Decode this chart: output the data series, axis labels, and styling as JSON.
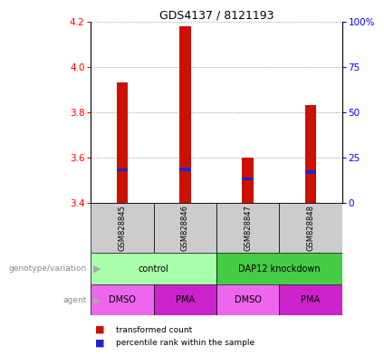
{
  "title": "GDS4137 / 8121193",
  "samples": [
    "GSM828845",
    "GSM828846",
    "GSM828847",
    "GSM828848"
  ],
  "bar_tops": [
    3.93,
    4.18,
    3.6,
    3.83
  ],
  "bar_bottom": 3.4,
  "percentile_values": [
    3.545,
    3.548,
    3.505,
    3.535
  ],
  "ylim": [
    3.4,
    4.2
  ],
  "yticks_left": [
    3.4,
    3.6,
    3.8,
    4.0,
    4.2
  ],
  "pct_ticks": [
    0,
    25,
    50,
    75,
    100
  ],
  "bar_color": "#cc1100",
  "percentile_color": "#2222cc",
  "bar_width": 0.18,
  "genotype_groups": [
    {
      "label": "control",
      "span": [
        0,
        2
      ],
      "color": "#aaffaa"
    },
    {
      "label": "DAP12 knockdown",
      "span": [
        2,
        4
      ],
      "color": "#44cc44"
    }
  ],
  "agent_groups": [
    {
      "label": "DMSO",
      "color": "#ee66ee"
    },
    {
      "label": "PMA",
      "color": "#cc22cc"
    },
    {
      "label": "DMSO",
      "color": "#ee66ee"
    },
    {
      "label": "PMA",
      "color": "#cc22cc"
    }
  ],
  "sample_box_color": "#cccccc",
  "grid_color": "#666666",
  "left_label_color": "#888888",
  "arrow_color": "#aaaaaa",
  "legend_red_color": "#cc1100",
  "legend_blue_color": "#2222cc"
}
